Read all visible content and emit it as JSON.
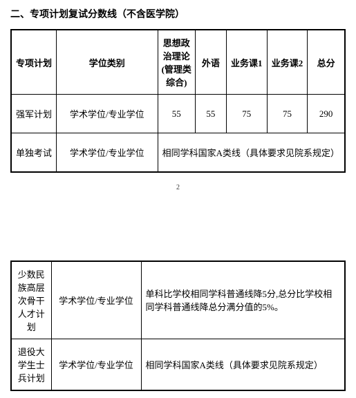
{
  "title": "二、专项计划复试分数线（不含医学院）",
  "headers": {
    "plan": "专项计划",
    "degree": "学位类别",
    "politics": "思想政治理论(管理类综合)",
    "foreign": "外语",
    "course1": "业务课1",
    "course2": "业务课2",
    "total": "总分"
  },
  "rows1": [
    {
      "plan": "强军计划",
      "degree": "学术学位/专业学位",
      "politics": "55",
      "foreign": "55",
      "course1": "75",
      "course2": "75",
      "total": "290"
    },
    {
      "plan": "单独考试",
      "degree": "学术学位/专业学位",
      "note": "相同学科国家A类线（具体要求见院系规定）"
    }
  ],
  "page_num": "2",
  "rows2": [
    {
      "plan": "少数民族高层次骨干人才计划",
      "degree": "学术学位/专业学位",
      "note": "单科比学校相同学科普通线降5分,总分比学校相同学科普通线降总分满分值的5%。"
    },
    {
      "plan": "退役大学生士兵计划",
      "degree": "学术学位/专业学位",
      "note": "相同学科国家A类线（具体要求见院系规定）"
    }
  ]
}
